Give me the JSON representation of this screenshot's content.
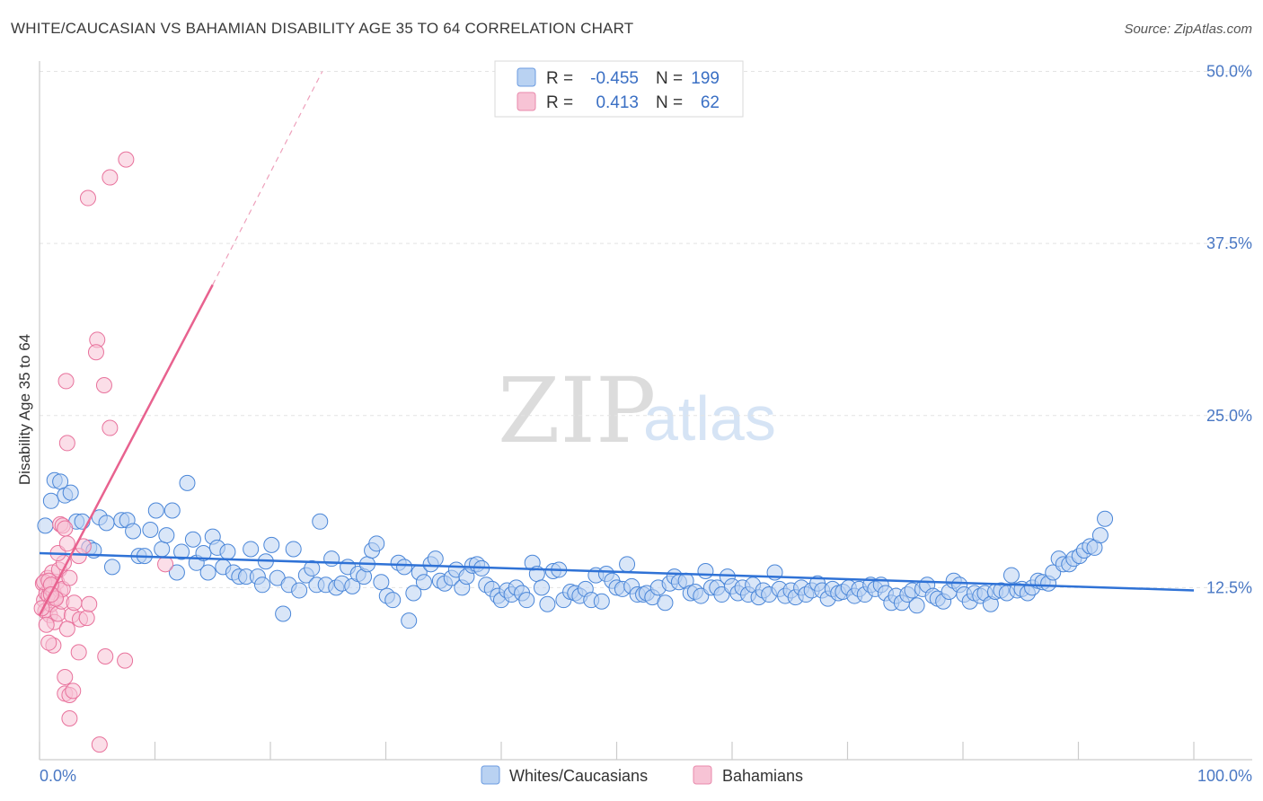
{
  "title": "WHITE/CAUCASIAN VS BAHAMIAN DISABILITY AGE 35 TO 64 CORRELATION CHART",
  "source": "Source: ZipAtlas.com",
  "watermark": {
    "zip": "ZIP",
    "atlas": "atlas"
  },
  "colors": {
    "blue": "#4a86d8",
    "blue_fill": "#b9d2f2",
    "pink": "#e8729c",
    "pink_fill": "#f7c3d5",
    "grid": "#e3e3e3"
  },
  "legend": {
    "rows": [
      {
        "r_label": "R =",
        "r_value": "-0.455",
        "n_label": "N =",
        "n_value": "199"
      },
      {
        "r_label": "R =",
        "r_value": "0.413",
        "n_label": "N =",
        "n_value": "62"
      }
    ]
  },
  "bottom_legend": {
    "series1": "Whites/Caucasians",
    "series2": "Bahamians"
  },
  "chart_data": {
    "type": "scatter",
    "title": "WHITE/CAUCASIAN VS BAHAMIAN DISABILITY AGE 35 TO 64 CORRELATION CHART",
    "xlabel": "",
    "ylabel": "Disability Age 35 to 64",
    "xlim": [
      0,
      100
    ],
    "ylim": [
      0,
      50
    ],
    "x_tick_labels": [
      "0.0%",
      "100.0%"
    ],
    "y_ticks": [
      12.5,
      25.0,
      37.5,
      50.0
    ],
    "y_tick_labels": [
      "12.5%",
      "25.0%",
      "37.5%",
      "50.0%"
    ],
    "series": [
      {
        "name": "Whites/Caucasians",
        "r": -0.455,
        "n": 199,
        "trend": {
          "x0": 0,
          "y0": 15.0,
          "x1": 100,
          "y1": 12.3
        },
        "points": [
          [
            0.5,
            17.0
          ],
          [
            1.0,
            18.8
          ],
          [
            1.3,
            20.3
          ],
          [
            1.8,
            20.2
          ],
          [
            2.2,
            19.2
          ],
          [
            2.7,
            19.4
          ],
          [
            3.2,
            17.3
          ],
          [
            3.7,
            17.3
          ],
          [
            4.3,
            15.4
          ],
          [
            4.7,
            15.2
          ],
          [
            5.2,
            17.6
          ],
          [
            5.8,
            17.2
          ],
          [
            6.3,
            14.0
          ],
          [
            7.1,
            17.4
          ],
          [
            7.6,
            17.4
          ],
          [
            8.1,
            16.6
          ],
          [
            8.6,
            14.8
          ],
          [
            9.1,
            14.8
          ],
          [
            9.6,
            16.7
          ],
          [
            10.1,
            18.1
          ],
          [
            10.6,
            15.3
          ],
          [
            11.0,
            16.3
          ],
          [
            11.5,
            18.1
          ],
          [
            11.9,
            13.6
          ],
          [
            12.3,
            15.1
          ],
          [
            12.8,
            20.1
          ],
          [
            13.3,
            16.0
          ],
          [
            13.6,
            14.3
          ],
          [
            14.2,
            15.0
          ],
          [
            14.6,
            13.6
          ],
          [
            15.0,
            16.2
          ],
          [
            15.4,
            15.4
          ],
          [
            15.9,
            14.0
          ],
          [
            16.3,
            15.1
          ],
          [
            16.8,
            13.6
          ],
          [
            17.3,
            13.3
          ],
          [
            17.9,
            13.3
          ],
          [
            18.3,
            15.3
          ],
          [
            18.9,
            13.3
          ],
          [
            19.3,
            12.7
          ],
          [
            19.6,
            14.4
          ],
          [
            20.1,
            15.6
          ],
          [
            20.6,
            13.2
          ],
          [
            21.1,
            10.6
          ],
          [
            21.6,
            12.7
          ],
          [
            22.0,
            15.3
          ],
          [
            22.5,
            12.3
          ],
          [
            23.1,
            13.4
          ],
          [
            23.6,
            13.9
          ],
          [
            24.0,
            12.7
          ],
          [
            24.3,
            17.3
          ],
          [
            24.8,
            12.7
          ],
          [
            25.3,
            14.6
          ],
          [
            25.7,
            12.5
          ],
          [
            26.2,
            12.8
          ],
          [
            26.7,
            14.0
          ],
          [
            27.1,
            12.6
          ],
          [
            27.6,
            13.5
          ],
          [
            28.1,
            13.3
          ],
          [
            28.4,
            14.2
          ],
          [
            28.8,
            15.2
          ],
          [
            29.2,
            15.7
          ],
          [
            29.6,
            12.9
          ],
          [
            30.1,
            11.9
          ],
          [
            30.6,
            11.6
          ],
          [
            31.1,
            14.3
          ],
          [
            31.6,
            14.0
          ],
          [
            32.0,
            10.1
          ],
          [
            32.4,
            12.1
          ],
          [
            32.9,
            13.6
          ],
          [
            33.3,
            12.9
          ],
          [
            33.9,
            14.2
          ],
          [
            34.3,
            14.6
          ],
          [
            34.7,
            13.0
          ],
          [
            35.1,
            12.8
          ],
          [
            35.7,
            13.2
          ],
          [
            36.1,
            13.8
          ],
          [
            36.6,
            12.5
          ],
          [
            37.0,
            13.3
          ],
          [
            37.5,
            14.1
          ],
          [
            37.9,
            14.2
          ],
          [
            38.3,
            13.9
          ],
          [
            38.7,
            12.7
          ],
          [
            39.2,
            12.4
          ],
          [
            39.7,
            11.9
          ],
          [
            40.0,
            11.6
          ],
          [
            40.5,
            12.3
          ],
          [
            40.9,
            12.0
          ],
          [
            41.3,
            12.5
          ],
          [
            41.8,
            12.1
          ],
          [
            42.2,
            11.6
          ],
          [
            42.7,
            14.3
          ],
          [
            43.1,
            13.5
          ],
          [
            43.5,
            12.5
          ],
          [
            44.0,
            11.3
          ],
          [
            44.5,
            13.7
          ],
          [
            45.0,
            13.8
          ],
          [
            45.4,
            11.6
          ],
          [
            46.0,
            12.2
          ],
          [
            46.4,
            12.1
          ],
          [
            46.8,
            11.9
          ],
          [
            47.3,
            12.4
          ],
          [
            47.8,
            11.6
          ],
          [
            48.2,
            13.4
          ],
          [
            48.7,
            11.5
          ],
          [
            49.1,
            13.5
          ],
          [
            49.6,
            13.0
          ],
          [
            50.0,
            12.5
          ],
          [
            50.5,
            12.4
          ],
          [
            50.9,
            14.2
          ],
          [
            51.3,
            12.6
          ],
          [
            51.8,
            12.0
          ],
          [
            52.3,
            12.0
          ],
          [
            52.6,
            12.1
          ],
          [
            53.1,
            11.8
          ],
          [
            53.6,
            12.5
          ],
          [
            54.2,
            11.4
          ],
          [
            54.6,
            12.8
          ],
          [
            55.0,
            13.3
          ],
          [
            55.4,
            12.9
          ],
          [
            56.0,
            13.0
          ],
          [
            56.4,
            12.1
          ],
          [
            56.8,
            12.2
          ],
          [
            57.3,
            11.9
          ],
          [
            57.7,
            13.7
          ],
          [
            58.2,
            12.5
          ],
          [
            58.7,
            12.5
          ],
          [
            59.1,
            12.0
          ],
          [
            59.6,
            13.3
          ],
          [
            60.0,
            12.6
          ],
          [
            60.5,
            12.1
          ],
          [
            60.9,
            12.5
          ],
          [
            61.4,
            12.0
          ],
          [
            61.8,
            12.7
          ],
          [
            62.3,
            11.8
          ],
          [
            62.7,
            12.3
          ],
          [
            63.2,
            12.0
          ],
          [
            63.7,
            13.6
          ],
          [
            64.1,
            12.4
          ],
          [
            64.6,
            11.9
          ],
          [
            65.1,
            12.3
          ],
          [
            65.5,
            11.8
          ],
          [
            66.0,
            12.5
          ],
          [
            66.4,
            12.0
          ],
          [
            66.9,
            12.3
          ],
          [
            67.4,
            12.8
          ],
          [
            67.8,
            12.3
          ],
          [
            68.3,
            11.7
          ],
          [
            68.7,
            12.4
          ],
          [
            69.2,
            12.1
          ],
          [
            69.6,
            12.2
          ],
          [
            70.1,
            12.5
          ],
          [
            70.6,
            11.9
          ],
          [
            71.0,
            12.4
          ],
          [
            71.5,
            12.0
          ],
          [
            72.0,
            12.7
          ],
          [
            72.4,
            12.4
          ],
          [
            72.9,
            12.7
          ],
          [
            73.3,
            12.1
          ],
          [
            73.8,
            11.4
          ],
          [
            74.2,
            11.9
          ],
          [
            74.7,
            11.4
          ],
          [
            75.2,
            12.0
          ],
          [
            75.6,
            12.3
          ],
          [
            76.0,
            11.2
          ],
          [
            76.5,
            12.4
          ],
          [
            76.9,
            12.7
          ],
          [
            77.4,
            11.9
          ],
          [
            77.8,
            11.7
          ],
          [
            78.3,
            11.5
          ],
          [
            78.8,
            12.2
          ],
          [
            79.2,
            13.0
          ],
          [
            79.7,
            12.7
          ],
          [
            80.1,
            12.0
          ],
          [
            80.6,
            11.5
          ],
          [
            81.0,
            12.1
          ],
          [
            81.5,
            11.9
          ],
          [
            81.9,
            12.1
          ],
          [
            82.4,
            11.3
          ],
          [
            82.8,
            12.2
          ],
          [
            83.3,
            12.3
          ],
          [
            83.8,
            12.1
          ],
          [
            84.2,
            13.4
          ],
          [
            84.7,
            12.3
          ],
          [
            85.1,
            12.4
          ],
          [
            85.6,
            12.1
          ],
          [
            86.0,
            12.5
          ],
          [
            86.5,
            13.0
          ],
          [
            86.9,
            12.9
          ],
          [
            87.4,
            12.8
          ],
          [
            87.8,
            13.6
          ],
          [
            88.3,
            14.6
          ],
          [
            88.7,
            14.2
          ],
          [
            89.2,
            14.2
          ],
          [
            89.6,
            14.6
          ],
          [
            90.1,
            14.8
          ],
          [
            90.5,
            15.2
          ],
          [
            91.0,
            15.5
          ],
          [
            91.4,
            15.4
          ],
          [
            91.9,
            16.3
          ],
          [
            92.3,
            17.5
          ]
        ]
      },
      {
        "name": "Bahamians",
        "r": 0.413,
        "n": 62,
        "trend_solid": {
          "x0": 0,
          "y0": 10.5,
          "x1": 15.0,
          "y1": 34.5
        },
        "trend_dashed": {
          "x0": 15.0,
          "y0": 34.5,
          "x1": 24.5,
          "y1": 50.0
        },
        "points": [
          [
            0.3,
            12.8
          ],
          [
            0.4,
            11.6
          ],
          [
            0.5,
            10.8
          ],
          [
            0.6,
            12.1
          ],
          [
            0.7,
            13.2
          ],
          [
            0.8,
            11.9
          ],
          [
            0.9,
            12.5
          ],
          [
            0.9,
            10.5
          ],
          [
            1.0,
            11.3
          ],
          [
            1.1,
            13.6
          ],
          [
            1.2,
            12.2
          ],
          [
            1.3,
            10.0
          ],
          [
            1.4,
            11.8
          ],
          [
            1.5,
            12.9
          ],
          [
            1.6,
            10.6
          ],
          [
            1.7,
            13.8
          ],
          [
            1.8,
            12.3
          ],
          [
            1.9,
            11.5
          ],
          [
            2.0,
            12.4
          ],
          [
            2.1,
            14.3
          ],
          [
            0.4,
            12.9
          ],
          [
            0.6,
            9.8
          ],
          [
            0.8,
            13.0
          ],
          [
            1.0,
            12.7
          ],
          [
            1.2,
            8.3
          ],
          [
            1.4,
            11.7
          ],
          [
            1.6,
            15.0
          ],
          [
            1.8,
            17.1
          ],
          [
            2.0,
            17.0
          ],
          [
            2.2,
            16.8
          ],
          [
            2.4,
            15.7
          ],
          [
            2.6,
            13.2
          ],
          [
            2.8,
            10.5
          ],
          [
            3.0,
            11.4
          ],
          [
            0.8,
            8.5
          ],
          [
            1.0,
            12.0
          ],
          [
            2.4,
            23.0
          ],
          [
            2.3,
            27.5
          ],
          [
            5.0,
            30.5
          ],
          [
            4.9,
            29.6
          ],
          [
            5.6,
            27.2
          ],
          [
            6.1,
            24.1
          ],
          [
            4.2,
            40.8
          ],
          [
            6.1,
            42.3
          ],
          [
            7.5,
            43.6
          ],
          [
            3.4,
            7.8
          ],
          [
            2.4,
            9.5
          ],
          [
            5.7,
            7.5
          ],
          [
            7.4,
            7.2
          ],
          [
            2.2,
            6.0
          ],
          [
            2.2,
            4.8
          ],
          [
            2.6,
            4.7
          ],
          [
            2.9,
            5.0
          ],
          [
            2.6,
            3.0
          ],
          [
            5.2,
            1.1
          ],
          [
            3.4,
            14.8
          ],
          [
            3.8,
            15.5
          ],
          [
            3.5,
            10.2
          ],
          [
            4.1,
            10.3
          ],
          [
            4.3,
            11.3
          ],
          [
            10.9,
            14.2
          ],
          [
            0.2,
            11.0
          ]
        ]
      }
    ]
  }
}
